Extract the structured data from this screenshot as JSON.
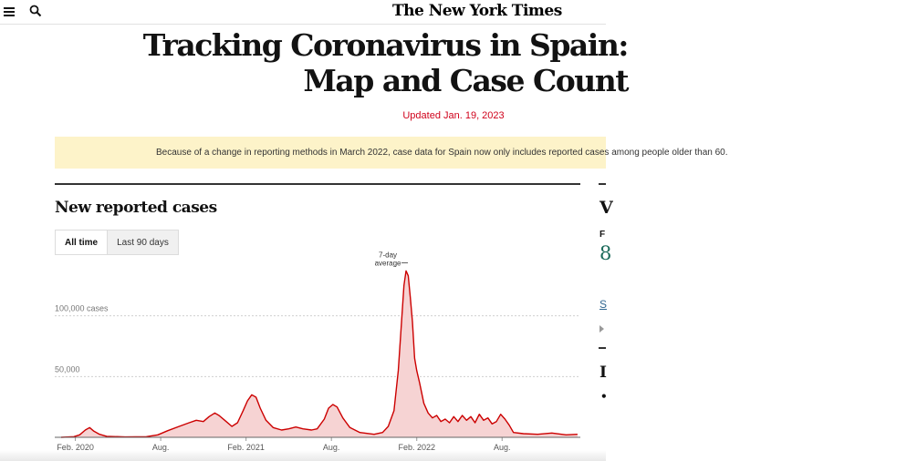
{
  "header": {
    "logo": "The New York Times",
    "menu_icon": "hamburger-menu-icon",
    "search_icon": "search-icon"
  },
  "article": {
    "title_line1": "Tracking Coronavirus in Spain:",
    "title_line2": "Map and Case Count",
    "updated": "Updated Jan. 19, 2023",
    "banner": "Because of a change in reporting methods in March 2022, case data for Spain now only includes reported cases among people older than 60."
  },
  "chart_section": {
    "title": "New reported cases",
    "toggle": [
      "All time",
      "Last 90 days"
    ],
    "active_toggle": "All time"
  },
  "side_panel": {
    "heading_initial": "V",
    "stat_label_initial": "F",
    "stat_initial": "8",
    "link_initial": "S",
    "heading2_initial": "I"
  },
  "colors": {
    "accent_red": "#d0021b",
    "chart_line": "#cc0000",
    "chart_fill": "#f6d3d3",
    "banner_bg": "#fdf3c9",
    "stat_green": "#1b6a5a"
  },
  "chart_data": {
    "type": "area",
    "title": "New reported cases",
    "series_label": "7-day average",
    "annotation": "7-day average",
    "y_ticks": [
      {
        "value": 50000,
        "label": "50,000"
      },
      {
        "value": 100000,
        "label": "100,000 cases"
      }
    ],
    "x_ticks": [
      {
        "month": 1,
        "label": "Feb. 2020"
      },
      {
        "month": 7,
        "label": "Aug."
      },
      {
        "month": 13,
        "label": "Feb. 2021"
      },
      {
        "month": 19,
        "label": "Aug."
      },
      {
        "month": 25,
        "label": "Feb. 2022"
      },
      {
        "month": 31,
        "label": "Aug."
      }
    ],
    "ylim": [
      0,
      150000
    ],
    "xlim": [
      0,
      36.5
    ],
    "x_unit": "months since Jan. 2020",
    "points": [
      [
        0,
        0
      ],
      [
        0.9,
        500
      ],
      [
        1.3,
        2000
      ],
      [
        1.7,
        6000
      ],
      [
        2.0,
        8000
      ],
      [
        2.3,
        5000
      ],
      [
        2.7,
        2500
      ],
      [
        3.2,
        800
      ],
      [
        4.5,
        300
      ],
      [
        6.0,
        500
      ],
      [
        6.8,
        2000
      ],
      [
        7.5,
        5500
      ],
      [
        8.3,
        9000
      ],
      [
        9.0,
        12000
      ],
      [
        9.5,
        14000
      ],
      [
        10.0,
        13000
      ],
      [
        10.4,
        17000
      ],
      [
        10.8,
        20000
      ],
      [
        11.1,
        18000
      ],
      [
        11.5,
        14000
      ],
      [
        12.0,
        9000
      ],
      [
        12.4,
        12000
      ],
      [
        12.8,
        22000
      ],
      [
        13.1,
        30000
      ],
      [
        13.4,
        35000
      ],
      [
        13.7,
        33000
      ],
      [
        14.0,
        24000
      ],
      [
        14.4,
        14000
      ],
      [
        14.9,
        8000
      ],
      [
        15.5,
        6000
      ],
      [
        16.0,
        7000
      ],
      [
        16.5,
        8500
      ],
      [
        17.0,
        7000
      ],
      [
        17.6,
        6000
      ],
      [
        18.0,
        7000
      ],
      [
        18.5,
        15000
      ],
      [
        18.8,
        24000
      ],
      [
        19.1,
        27000
      ],
      [
        19.4,
        25000
      ],
      [
        19.8,
        16000
      ],
      [
        20.3,
        8000
      ],
      [
        21.0,
        4000
      ],
      [
        22.0,
        2500
      ],
      [
        22.6,
        4000
      ],
      [
        23.0,
        9000
      ],
      [
        23.4,
        22000
      ],
      [
        23.7,
        55000
      ],
      [
        23.9,
        90000
      ],
      [
        24.1,
        125000
      ],
      [
        24.25,
        137000
      ],
      [
        24.4,
        133000
      ],
      [
        24.55,
        115000
      ],
      [
        24.7,
        95000
      ],
      [
        24.85,
        65000
      ],
      [
        25.0,
        55000
      ],
      [
        25.2,
        45000
      ],
      [
        25.5,
        28000
      ],
      [
        25.8,
        20000
      ],
      [
        26.1,
        16000
      ],
      [
        26.4,
        18000
      ],
      [
        26.7,
        13000
      ],
      [
        27.0,
        15000
      ],
      [
        27.3,
        12000
      ],
      [
        27.6,
        17000
      ],
      [
        27.9,
        13000
      ],
      [
        28.2,
        18000
      ],
      [
        28.5,
        14000
      ],
      [
        28.8,
        17000
      ],
      [
        29.1,
        12000
      ],
      [
        29.4,
        19000
      ],
      [
        29.7,
        14000
      ],
      [
        30.0,
        16000
      ],
      [
        30.3,
        11000
      ],
      [
        30.6,
        13000
      ],
      [
        30.9,
        19000
      ],
      [
        31.2,
        15000
      ],
      [
        31.5,
        10000
      ],
      [
        31.8,
        4000
      ],
      [
        32.5,
        3000
      ],
      [
        33.5,
        2500
      ],
      [
        34.5,
        3500
      ],
      [
        35.5,
        2000
      ],
      [
        36.3,
        2500
      ]
    ]
  }
}
